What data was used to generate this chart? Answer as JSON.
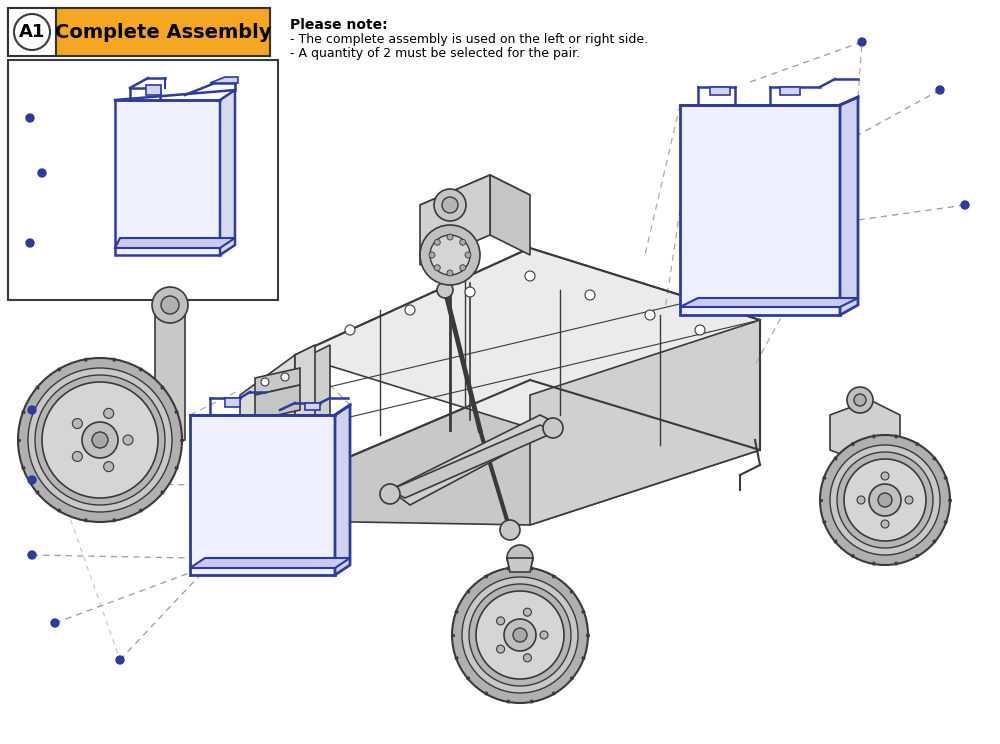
{
  "bg_color": "#ffffff",
  "title_box": {
    "label_text": "A1",
    "title_text": "Complete Assembly",
    "title_bg": "#f5a623",
    "box_border": "#333333"
  },
  "note_title": "Please note:",
  "note_lines": [
    "- The complete assembly is used on the left or right side.",
    "- A quantity of 2 must be selected for the pair."
  ],
  "blue": "#2d3a9e",
  "blue_light": "#4a5abf",
  "blue_fill": "#e8eaff",
  "dark": "#3a3a3a",
  "mid": "#888888",
  "light_gray": "#c8c8c8",
  "lighter_gray": "#e0e0e0",
  "screw_blue": "#2d3a9e",
  "dash_color": "#888888"
}
